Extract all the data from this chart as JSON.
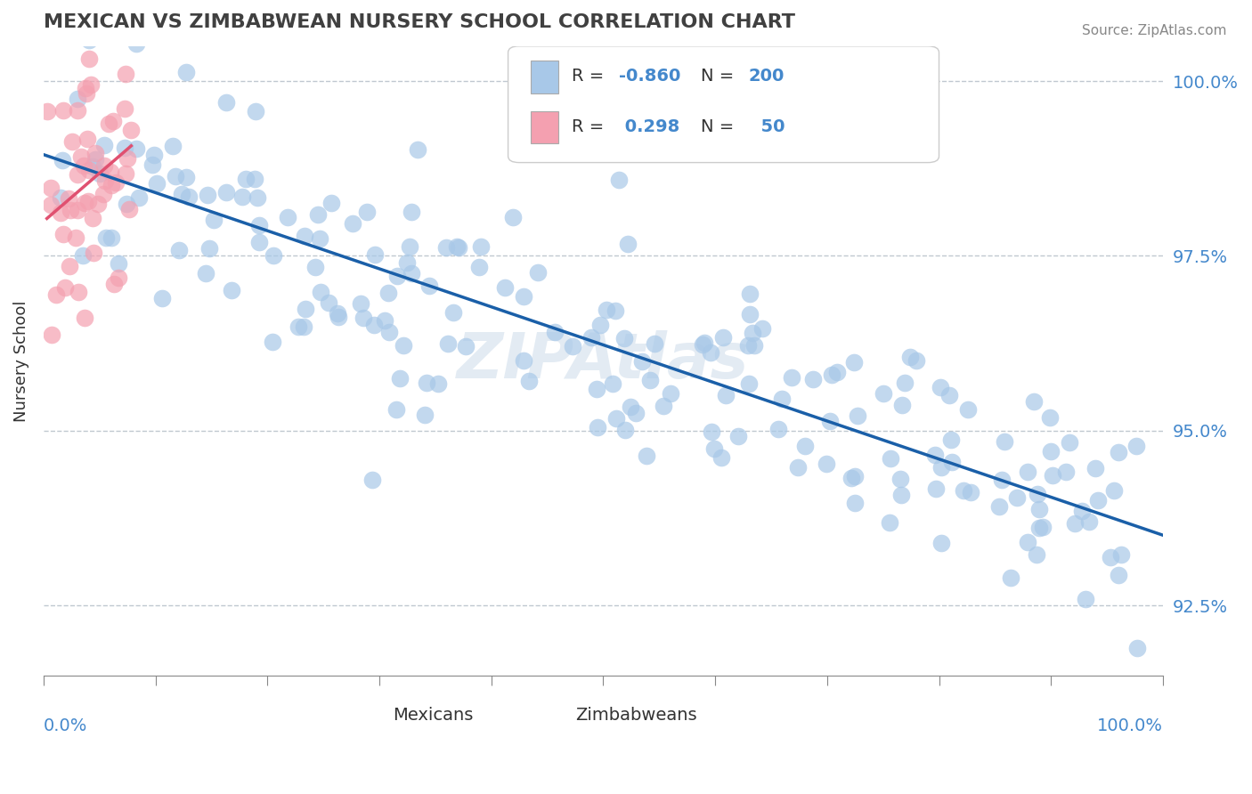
{
  "title": "MEXICAN VS ZIMBABWEAN NURSERY SCHOOL CORRELATION CHART",
  "source_text": "Source: ZipAtlas.com",
  "ylabel": "Nursery School",
  "legend_mexican": {
    "R": -0.86,
    "N": 200,
    "label": "Mexicans"
  },
  "legend_zimbabwean": {
    "R": 0.298,
    "N": 50,
    "label": "Zimbabweans"
  },
  "mexican_color": "#a8c8e8",
  "mexican_line_color": "#1a5fa8",
  "zimbabwean_color": "#f4a0b0",
  "zimbabwean_line_color": "#e05070",
  "ytick_labels": [
    "92.5%",
    "95.0%",
    "97.5%",
    "100.0%"
  ],
  "ytick_values": [
    0.925,
    0.95,
    0.975,
    1.0
  ],
  "xlim": [
    0.0,
    1.0
  ],
  "ylim": [
    0.915,
    1.005
  ],
  "background_color": "#ffffff",
  "grid_color": "#c0c8d0",
  "title_color": "#404040",
  "axis_label_color": "#4488cc",
  "watermark_text": "ZIPAtlas",
  "mexican_scatter_seed": 42,
  "zimbabwean_scatter_seed": 7
}
